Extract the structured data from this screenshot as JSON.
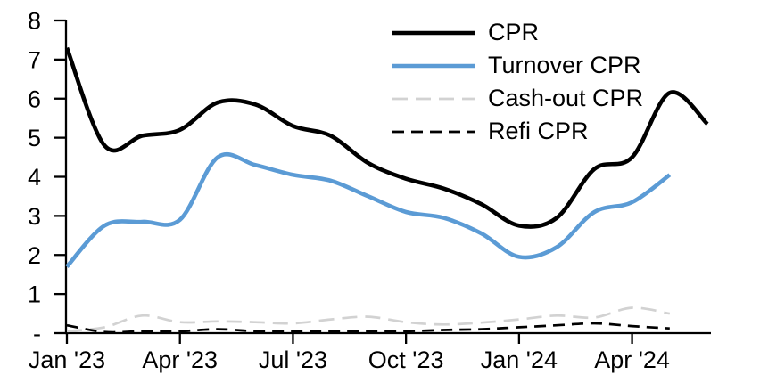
{
  "chart_data": {
    "type": "line",
    "title": "",
    "xlabel": "",
    "ylabel": "",
    "ylim": [
      0,
      8
    ],
    "grid": false,
    "legend_position": "top-right-inside",
    "background_color": "#FFFFFF",
    "axis_color": "#000000",
    "y_tick_labels": [
      "8",
      "7",
      "6",
      "5",
      "4",
      "3",
      "2",
      "1",
      "-"
    ],
    "y_tick_values": [
      8,
      7,
      6,
      5,
      4,
      3,
      2,
      1,
      0
    ],
    "x_categories": [
      "Jan '23",
      "Feb '23",
      "Mar '23",
      "Apr '23",
      "May '23",
      "Jun '23",
      "Jul '23",
      "Aug '23",
      "Sep '23",
      "Oct '23",
      "Nov '23",
      "Dec '23",
      "Jan '24",
      "Feb '24",
      "Mar '24",
      "Apr '24",
      "May '24",
      "Jun '24"
    ],
    "x_tick_labels": [
      "Jan '23",
      "Apr '23",
      "Jul '23",
      "Oct '23",
      "Jan '24",
      "Apr '24"
    ],
    "x_tick_positions": [
      0,
      3,
      6,
      9,
      12,
      15
    ],
    "series": [
      {
        "name": "CPR",
        "color": "#000000",
        "style": "solid",
        "values": [
          7.3,
          4.8,
          5.05,
          5.2,
          5.9,
          5.85,
          5.3,
          5.05,
          4.35,
          3.95,
          3.7,
          3.3,
          2.75,
          2.95,
          4.2,
          4.5,
          6.15,
          5.35
        ]
      },
      {
        "name": "Turnover CPR",
        "color": "#5B9BD5",
        "style": "solid",
        "values": [
          1.7,
          2.75,
          2.85,
          2.9,
          4.5,
          4.3,
          4.05,
          3.9,
          3.5,
          3.1,
          2.95,
          2.55,
          1.95,
          2.2,
          3.1,
          3.35,
          4.05
        ]
      },
      {
        "name": "Cash-out CPR",
        "color": "#D2D2D2",
        "style": "dashed",
        "values": [
          0.05,
          0.15,
          0.45,
          0.28,
          0.3,
          0.28,
          0.25,
          0.35,
          0.42,
          0.28,
          0.22,
          0.27,
          0.35,
          0.45,
          0.4,
          0.65,
          0.5
        ]
      },
      {
        "name": "Refi CPR",
        "color": "#000000",
        "style": "dashed",
        "values": [
          0.2,
          0.03,
          0.05,
          0.05,
          0.1,
          0.05,
          0.05,
          0.05,
          0.05,
          0.05,
          0.08,
          0.1,
          0.15,
          0.2,
          0.25,
          0.18,
          0.12
        ]
      }
    ]
  }
}
